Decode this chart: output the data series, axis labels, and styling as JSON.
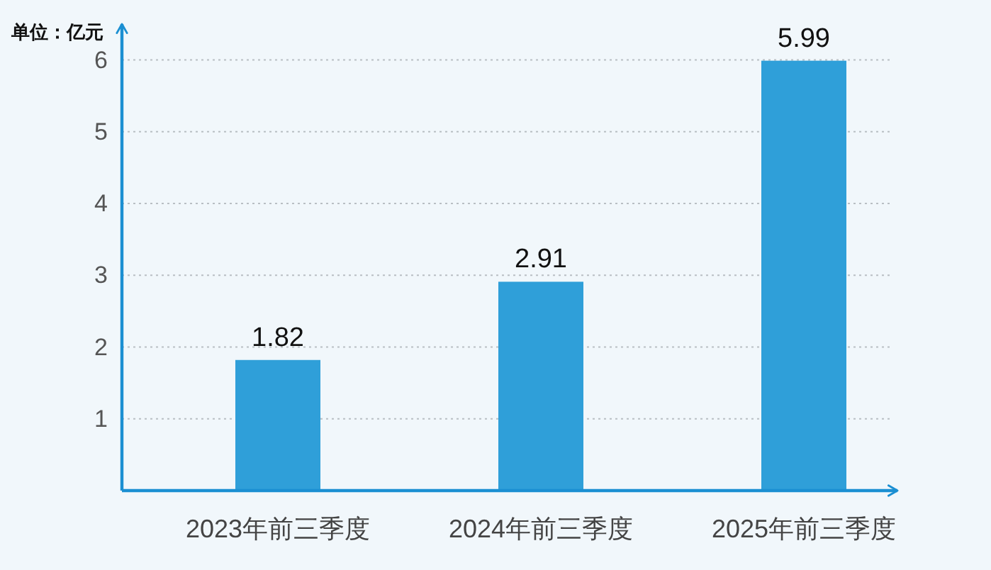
{
  "chart_data": {
    "type": "bar",
    "ylabel": "单位：亿元",
    "categories": [
      "2023年前三季度",
      "2024年前三季度",
      "2025年前三季度"
    ],
    "values": [
      1.82,
      2.91,
      5.99
    ],
    "color": "#2f9fd9",
    "ylim": [
      0,
      6.5
    ],
    "yticks": [
      1,
      2,
      3,
      4,
      5,
      6
    ],
    "grid": "y",
    "data_labels": true
  }
}
